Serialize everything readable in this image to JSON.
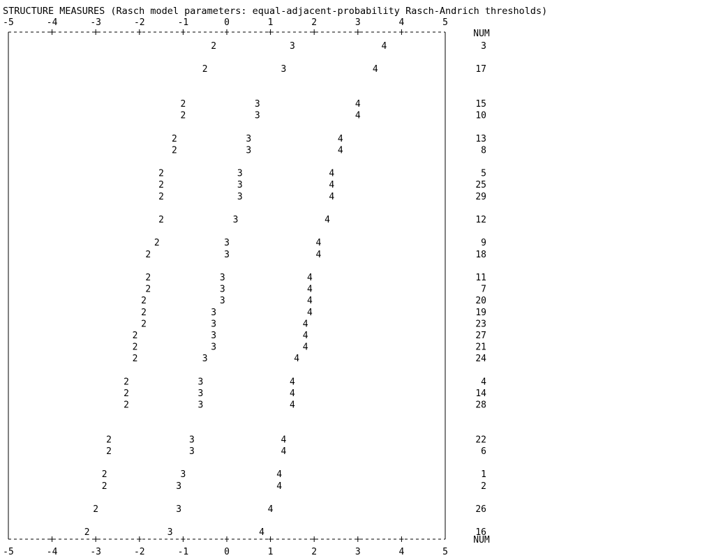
{
  "chart_data": {
    "type": "scatter",
    "title": "STRUCTURE MEASURES (Rasch model parameters: equal-adjacent-probability Rasch-Andrich thresholds)",
    "xlim": [
      -5,
      5
    ],
    "x_ticks": [
      "-5",
      "-4",
      "-3",
      "-2",
      "-1",
      "0",
      "1",
      "2",
      "3",
      "4",
      "5"
    ],
    "row_label_header": "NUM",
    "legend": "none",
    "grid": false,
    "point_labels": [
      "2",
      "3",
      "4"
    ],
    "items": [
      {
        "num": "3",
        "thresholds": [
          -0.3,
          1.5,
          3.6
        ]
      },
      {
        "num": "17",
        "thresholds": [
          -0.5,
          1.3,
          3.4
        ]
      },
      {
        "num": "15",
        "thresholds": [
          -1.0,
          0.7,
          3.0
        ]
      },
      {
        "num": "10",
        "thresholds": [
          -1.0,
          0.7,
          3.0
        ]
      },
      {
        "num": "13",
        "thresholds": [
          -1.2,
          0.5,
          2.6
        ]
      },
      {
        "num": "8",
        "thresholds": [
          -1.2,
          0.5,
          2.6
        ]
      },
      {
        "num": "5",
        "thresholds": [
          -1.5,
          0.3,
          2.4
        ]
      },
      {
        "num": "25",
        "thresholds": [
          -1.5,
          0.3,
          2.4
        ]
      },
      {
        "num": "29",
        "thresholds": [
          -1.5,
          0.3,
          2.4
        ]
      },
      {
        "num": "12",
        "thresholds": [
          -1.5,
          0.2,
          2.3
        ]
      },
      {
        "num": "9",
        "thresholds": [
          -1.6,
          0.0,
          2.1
        ]
      },
      {
        "num": "18",
        "thresholds": [
          -1.8,
          0.0,
          2.1
        ]
      },
      {
        "num": "11",
        "thresholds": [
          -1.8,
          -0.1,
          1.9
        ]
      },
      {
        "num": "7",
        "thresholds": [
          -1.8,
          -0.1,
          1.9
        ]
      },
      {
        "num": "20",
        "thresholds": [
          -1.9,
          -0.1,
          1.9
        ]
      },
      {
        "num": "19",
        "thresholds": [
          -1.9,
          -0.3,
          1.9
        ]
      },
      {
        "num": "23",
        "thresholds": [
          -1.9,
          -0.3,
          1.8
        ]
      },
      {
        "num": "27",
        "thresholds": [
          -2.1,
          -0.3,
          1.8
        ]
      },
      {
        "num": "21",
        "thresholds": [
          -2.1,
          -0.3,
          1.8
        ]
      },
      {
        "num": "24",
        "thresholds": [
          -2.1,
          -0.5,
          1.6
        ]
      },
      {
        "num": "4",
        "thresholds": [
          -2.3,
          -0.6,
          1.5
        ]
      },
      {
        "num": "14",
        "thresholds": [
          -2.3,
          -0.6,
          1.5
        ]
      },
      {
        "num": "28",
        "thresholds": [
          -2.3,
          -0.6,
          1.5
        ]
      },
      {
        "num": "22",
        "thresholds": [
          -2.7,
          -0.8,
          1.3
        ]
      },
      {
        "num": "6",
        "thresholds": [
          -2.7,
          -0.8,
          1.3
        ]
      },
      {
        "num": "1",
        "thresholds": [
          -2.8,
          -1.0,
          1.2
        ]
      },
      {
        "num": "2",
        "thresholds": [
          -2.8,
          -1.1,
          1.2
        ]
      },
      {
        "num": "26",
        "thresholds": [
          -3.0,
          -1.1,
          1.0
        ]
      },
      {
        "num": "16",
        "thresholds": [
          -3.2,
          -1.3,
          0.8
        ]
      }
    ]
  }
}
